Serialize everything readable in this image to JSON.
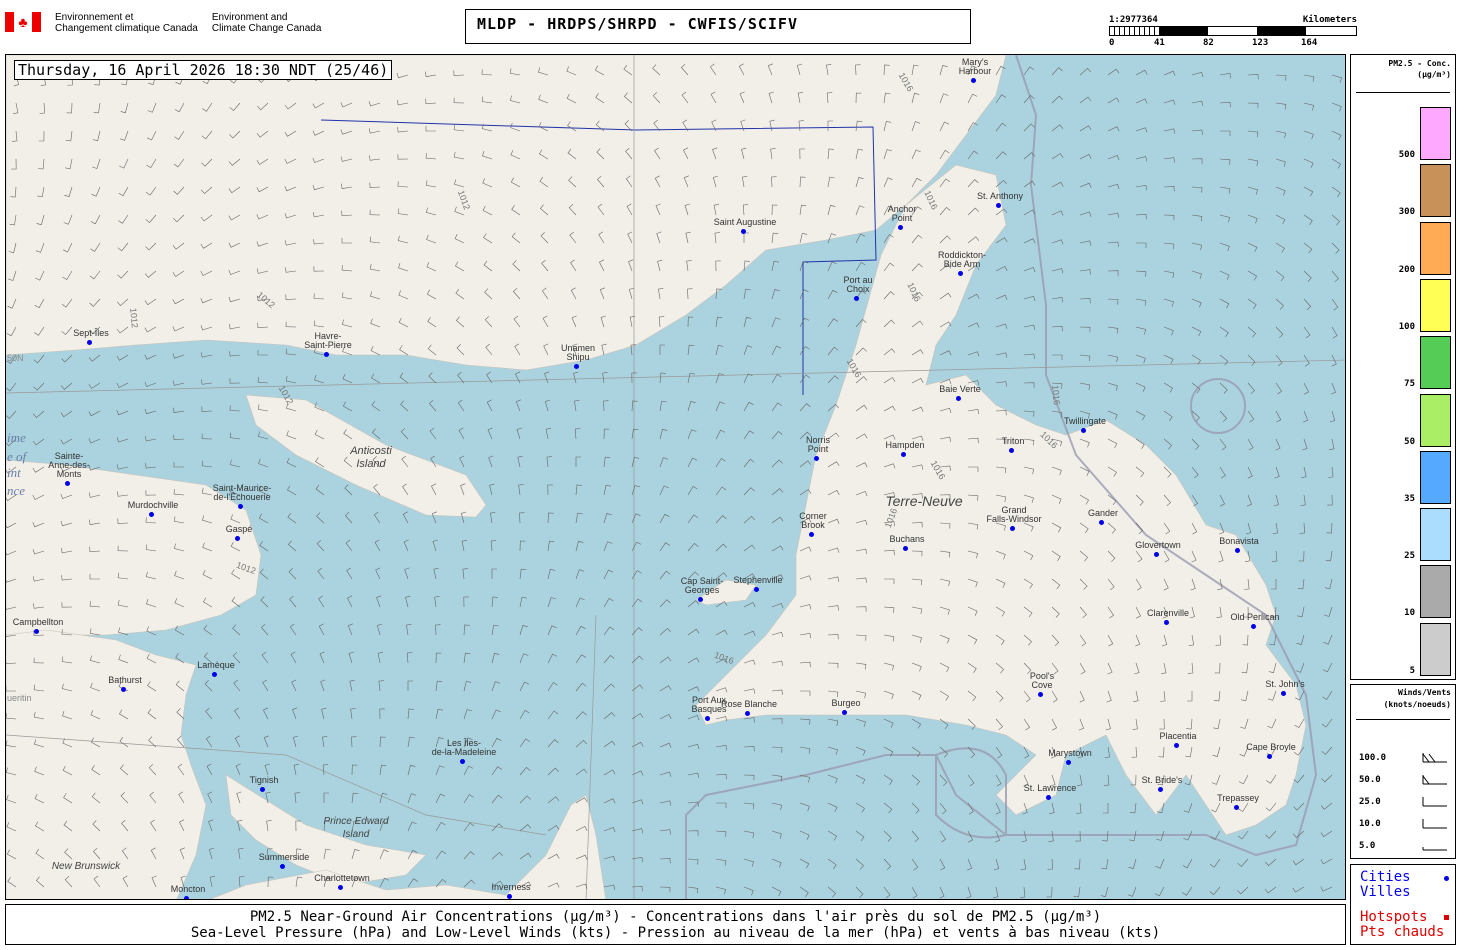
{
  "header": {
    "agency_fr": "Environnement et\nChangement climatique Canada",
    "agency_en": "Environment and\nClimate Change Canada",
    "title": "MLDP - HRDPS/SHRPD - CWFIS/SCIFV",
    "scale": {
      "ratio": "1:2977364",
      "units": "Kilometers",
      "ticks": [
        "0",
        "41",
        "82",
        "123",
        "164"
      ]
    }
  },
  "map": {
    "datetime": "Thursday, 16 April 2026 18:30 NDT (25/46)",
    "colors": {
      "water": "#aad3df",
      "land": "#f2efe9",
      "city_dot": "#0000ee"
    },
    "regions": [
      "Anticosti\nIsland",
      "Terre-Neuve",
      "Prince Edward\nIsland",
      "New Brunswick"
    ],
    "isobars": [
      "1016",
      "1012",
      "1016",
      "1012",
      "1012",
      "1016",
      "1016",
      "1016",
      "1016",
      "1016",
      "1016",
      "1012",
      "1012",
      "1016"
    ],
    "edge_labels": [
      "50N",
      "ime",
      "e of",
      "int",
      "nce",
      "ueritin"
    ],
    "cities": [
      "Mary's\nHarbour",
      "St. Anthony",
      "Anchor\nPoint",
      "Saint Augustine",
      "Roddickton-\nBide Arm",
      "Port au\nChoix",
      "Sept-Îles",
      "Havre-\nSaint-Pierre",
      "Unamen\nShipu",
      "Baie Verte",
      "Twillingate",
      "Norris\nPoint",
      "Hampden",
      "Triton",
      "Sainte-\nAnne-des-\nMonts",
      "Saint-Maurice-\nde-l'Échouerie",
      "Murdochville",
      "Gaspé",
      "Corner\nBrook",
      "Grand\nFalls-Windsor",
      "Gander",
      "Buchans",
      "Glovertown",
      "Bonavista",
      "Stephenville",
      "Cap Saint-\nGeorges",
      "Clarenville",
      "Old Perlican",
      "Campbellton",
      "Lamèque",
      "Bathurst",
      "Pool's\nCove",
      "St. John's",
      "Port Aux\nBasques",
      "Rose Blanche",
      "Burgeo",
      "Les Îles-\nde-la-Madeleine",
      "Marystown",
      "Placentia",
      "Cape Broyle",
      "Tignish",
      "St. Bride's",
      "St. Lawrence",
      "Trepassey",
      "Summerside",
      "Charlottetown",
      "Inverness",
      "Moncton"
    ]
  },
  "legend": {
    "title": "PM2.5 - Conc.",
    "units": "(µg/m³)",
    "levels": [
      {
        "label": "500",
        "color": "#ffa8ff"
      },
      {
        "label": "300",
        "color": "#c8915a"
      },
      {
        "label": "200",
        "color": "#ffaa55"
      },
      {
        "label": "100",
        "color": "#ffff55"
      },
      {
        "label": "75",
        "color": "#55cc55"
      },
      {
        "label": "50",
        "color": "#aaee66"
      },
      {
        "label": "35",
        "color": "#55aaff"
      },
      {
        "label": "25",
        "color": "#aaddff"
      },
      {
        "label": "10",
        "color": "#aaaaaa"
      },
      {
        "label": "5",
        "color": "#cccccc"
      }
    ]
  },
  "winds": {
    "title": "Winds/Vents",
    "units": "(knots/noeuds)",
    "values": [
      "100.0",
      "50.0",
      "25.0",
      "10.0",
      "5.0"
    ]
  },
  "keys": {
    "cities_en": "Cities",
    "cities_fr": "Villes",
    "hotspots_en": "Hotspots",
    "hotspots_fr": "Pts chauds",
    "cities_color": "#0000ee",
    "hotspots_color": "#dd0000"
  },
  "footer": {
    "line1": "PM2.5 Near-Ground Air Concentrations (µg/m³) - Concentrations dans l'air près du sol de PM2.5 (µg/m³)",
    "line2": "Sea-Level Pressure (hPa) and Low-Level Winds (kts) - Pression au niveau de la mer (hPa) et vents à bas niveau (kts)"
  }
}
